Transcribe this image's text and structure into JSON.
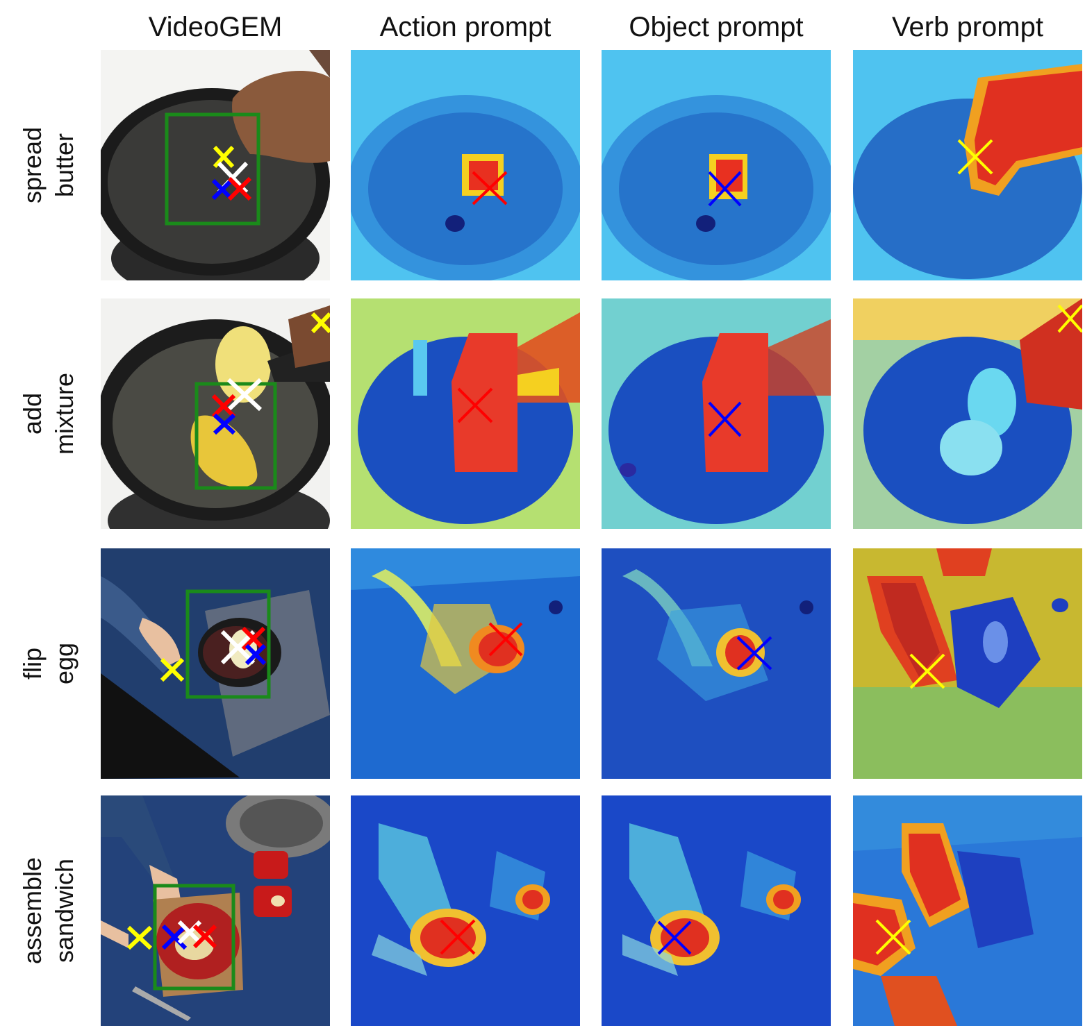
{
  "columns": [
    "VideoGEM",
    "Action prompt",
    "Object prompt",
    "Verb prompt"
  ],
  "rows": [
    {
      "line1": "spread",
      "line2": "butter"
    },
    {
      "line1": "add",
      "line2": "mixture"
    },
    {
      "line1": "flip",
      "line2": "egg"
    },
    {
      "line1": "assemble",
      "line2": "sandwich"
    }
  ],
  "marker_colors": {
    "action": "#ff0000",
    "object": "#0000ff",
    "verb": "#ffff00",
    "videogem": "#ffffff",
    "bbox": "#1a8a1a"
  }
}
